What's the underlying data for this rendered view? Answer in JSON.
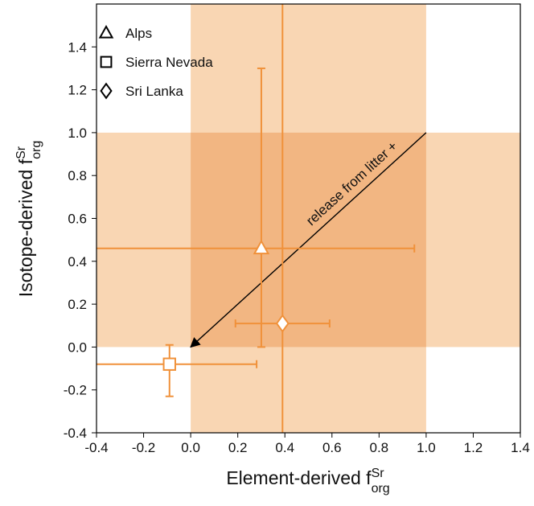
{
  "chart_data": {
    "type": "scatter",
    "xlabel": {
      "text": "Element-derived f",
      "sup": "Sr",
      "sub": "org"
    },
    "ylabel": {
      "text": "Isotope-derived f",
      "sup": "Sr",
      "sub": "org"
    },
    "xlim": [
      -0.4,
      1.4
    ],
    "ylim": [
      -0.4,
      1.6
    ],
    "xticks": [
      -0.4,
      -0.2,
      {
        "value": 0,
        "label": "0.0"
      },
      0.2,
      0.4,
      0.6,
      0.8,
      {
        "value": 1,
        "label": "1.0"
      },
      1.2,
      1.4
    ],
    "yticks": [
      -0.4,
      -0.2,
      {
        "value": 0,
        "label": "0.0"
      },
      0.2,
      0.4,
      0.6,
      0.8,
      {
        "value": 1,
        "label": "1.0"
      },
      1.2,
      1.4
    ],
    "shaded_x": [
      0,
      1
    ],
    "shaded_y": [
      0,
      1
    ],
    "shade_color": "#f9d6b3",
    "overlap_color": "#f2b682",
    "color": "#f0913a",
    "legend": "upper left",
    "series": [
      {
        "name": "Alps",
        "marker": "triangle",
        "x": [
          0.3
        ],
        "values": [
          0.46
        ],
        "x_err": [
          [
            0.72,
            0.65
          ]
        ],
        "y_err": [
          [
            0.46,
            0.84
          ]
        ]
      },
      {
        "name": "Sierra Nevada",
        "marker": "square",
        "x": [
          -0.09
        ],
        "values": [
          -0.08
        ],
        "x_err": [
          [
            0.37,
            0.37
          ]
        ],
        "y_err": [
          [
            0.15,
            0.09
          ]
        ]
      },
      {
        "name": "Sri Lanka",
        "marker": "diamond",
        "x": [
          0.39
        ],
        "values": [
          0.11
        ],
        "x_err": [
          [
            0.2,
            0.2
          ]
        ],
        "y_err": [
          [
            0.6,
            1.5
          ]
        ]
      }
    ],
    "arrow": {
      "text": "release from litter +",
      "from": [
        1,
        1
      ],
      "to": [
        0,
        0
      ]
    }
  }
}
